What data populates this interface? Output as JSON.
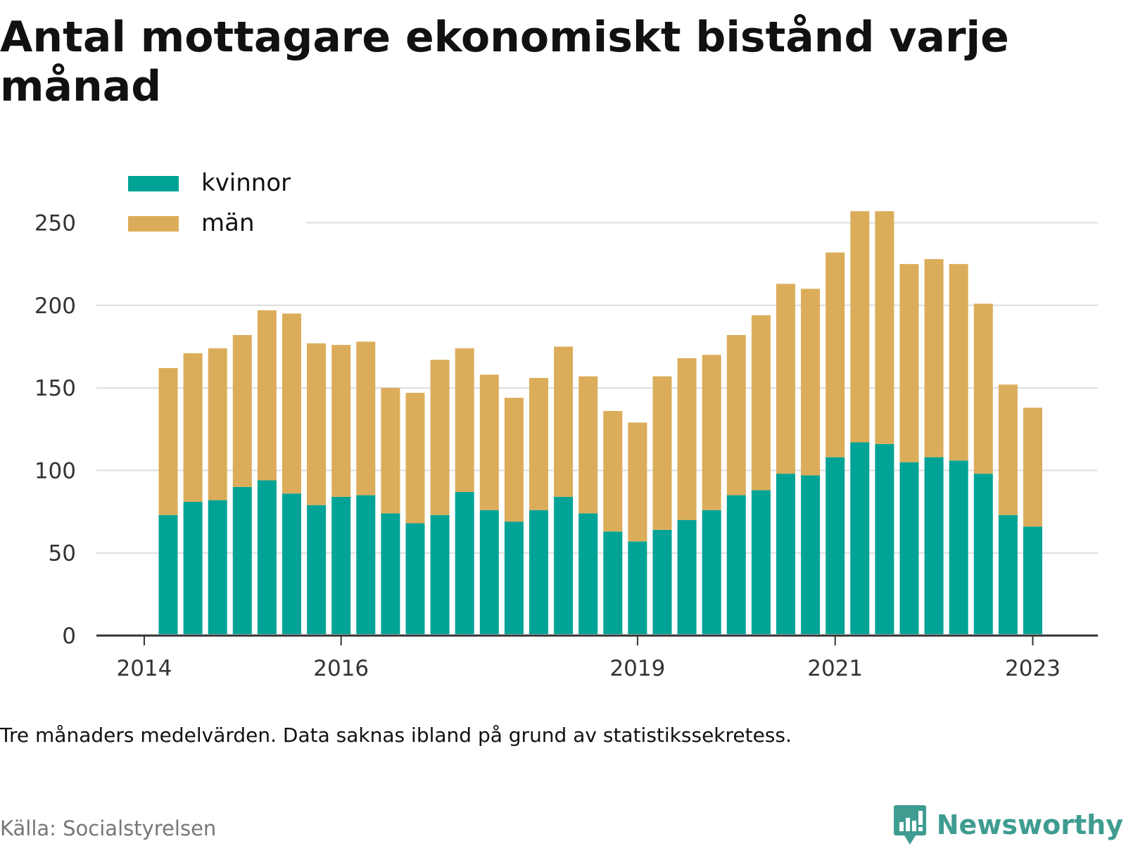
{
  "title": "Antal mottagare ekonomiskt bistånd varje månad",
  "note": "Tre månaders medelvärden. Data saknas ibland på grund av statistikssekretess.",
  "source": "Källa: Socialstyrelsen",
  "brand": "Newsworthy",
  "colors": {
    "kvinnor": "#00a396",
    "man": "#dbad5a",
    "grid": "#dddddd",
    "axis": "#333333"
  },
  "icons": {
    "brand_logo": "bar-chart-bubble-icon"
  },
  "chart_data": {
    "type": "bar",
    "stacked": true,
    "legend": {
      "placement": "top-left"
    },
    "grid": true,
    "ylim": [
      0,
      260
    ],
    "yticks": [
      0,
      50,
      100,
      150,
      200,
      250
    ],
    "xticks": [
      {
        "label": "2014",
        "pos": -0.97
      },
      {
        "label": "2016",
        "pos": 7
      },
      {
        "label": "2019",
        "pos": 19
      },
      {
        "label": "2021",
        "pos": 27
      },
      {
        "label": "2023",
        "pos": 35
      }
    ],
    "series": [
      {
        "name": "kvinnor",
        "values": [
          73,
          81,
          82,
          90,
          94,
          86,
          79,
          84,
          85,
          74,
          68,
          73,
          87,
          76,
          69,
          76,
          84,
          74,
          63,
          57,
          64,
          70,
          76,
          85,
          88,
          98,
          97,
          108,
          117,
          116,
          105,
          108,
          106,
          98,
          73,
          66
        ]
      },
      {
        "name": "män",
        "values": [
          89,
          90,
          92,
          92,
          103,
          109,
          98,
          92,
          93,
          76,
          79,
          94,
          87,
          82,
          75,
          80,
          91,
          83,
          73,
          72,
          93,
          98,
          94,
          97,
          106,
          115,
          113,
          124,
          140,
          141,
          120,
          120,
          119,
          103,
          79,
          72
        ]
      }
    ]
  }
}
